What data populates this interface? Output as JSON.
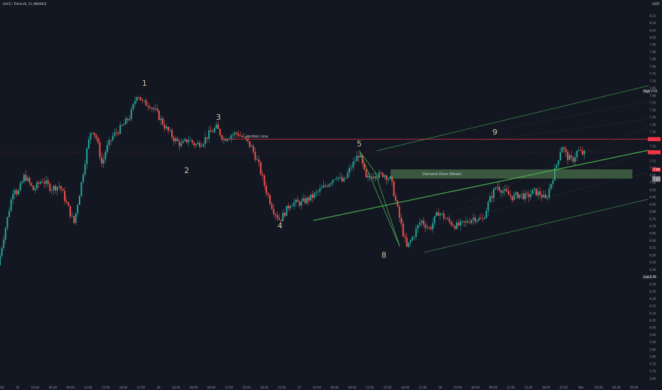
{
  "header": {
    "symbol_title": "ALICE / TetherUS, 15, BINANCE",
    "currency": "USDT"
  },
  "chart_data": {
    "type": "candlestick",
    "x_ticks": [
      "21:00",
      "25",
      "03:00",
      "06:00",
      "09:00",
      "12:00",
      "15:00",
      "18:00",
      "21:00",
      "26",
      "03:00",
      "06:00",
      "09:00",
      "12:00",
      "15:00",
      "18:00",
      "21:00",
      "27",
      "03:00",
      "06:00",
      "09:00",
      "12:00",
      "15:00",
      "18:00",
      "21:00",
      "28",
      "03:00",
      "06:00",
      "09:00",
      "12:00",
      "15:00",
      "18:00",
      "21:00",
      "Mar",
      "03:00",
      "06:00",
      "09:00"
    ],
    "y_ticks": [
      "8.15",
      "8.10",
      "8.05",
      "8.00",
      "7.95",
      "7.90",
      "7.85",
      "7.80",
      "7.75",
      "7.70",
      "7.65",
      "7.60",
      "7.55",
      "7.50",
      "7.45",
      "7.40",
      "7.35",
      "7.30",
      "7.25",
      "7.20",
      "7.15",
      "7.10",
      "7.05",
      "7.00",
      "6.95",
      "6.90",
      "6.85",
      "6.80",
      "6.75",
      "6.70",
      "6.65",
      "6.60",
      "6.55",
      "6.50",
      "6.45",
      "6.40",
      "6.35",
      "6.30",
      "6.25",
      "6.20",
      "6.15",
      "6.10",
      "6.05",
      "6.00",
      "5.95",
      "5.90",
      "5.85",
      "5.80",
      "5.75",
      "5.70",
      "5.65"
    ],
    "ylim": [
      5.62,
      8.22
    ],
    "price_path": [
      {
        "t": 0,
        "p": 6.43
      },
      {
        "t": 0.3,
        "p": 6.62
      },
      {
        "t": 0.6,
        "p": 6.8
      },
      {
        "t": 0.9,
        "p": 6.98
      },
      {
        "t": 1.1,
        "p": 6.92
      },
      {
        "t": 1.5,
        "p": 7.05
      },
      {
        "t": 2.0,
        "p": 6.95
      },
      {
        "t": 2.5,
        "p": 7.02
      },
      {
        "t": 3.0,
        "p": 6.96
      },
      {
        "t": 3.5,
        "p": 6.98
      },
      {
        "t": 4.0,
        "p": 6.82
      },
      {
        "t": 4.3,
        "p": 6.72
      },
      {
        "t": 4.7,
        "p": 6.98
      },
      {
        "t": 5.0,
        "p": 7.2
      },
      {
        "t": 5.3,
        "p": 7.38
      },
      {
        "t": 5.6,
        "p": 7.3
      },
      {
        "t": 5.9,
        "p": 7.12
      },
      {
        "t": 6.1,
        "p": 7.22
      },
      {
        "t": 6.5,
        "p": 7.32
      },
      {
        "t": 7.0,
        "p": 7.38
      },
      {
        "t": 7.5,
        "p": 7.46
      },
      {
        "t": 7.9,
        "p": 7.62
      },
      {
        "t": 8.2,
        "p": 7.55
      },
      {
        "t": 8.6,
        "p": 7.54
      },
      {
        "t": 9.0,
        "p": 7.48
      },
      {
        "t": 9.5,
        "p": 7.38
      },
      {
        "t": 10.0,
        "p": 7.3
      },
      {
        "t": 10.4,
        "p": 7.26
      },
      {
        "t": 10.8,
        "p": 7.3
      },
      {
        "t": 11.2,
        "p": 7.26
      },
      {
        "t": 11.6,
        "p": 7.28
      },
      {
        "t": 12.0,
        "p": 7.34
      },
      {
        "t": 12.4,
        "p": 7.38
      },
      {
        "t": 12.8,
        "p": 7.3
      },
      {
        "t": 13.2,
        "p": 7.33
      },
      {
        "t": 13.6,
        "p": 7.34
      },
      {
        "t": 14.0,
        "p": 7.3
      },
      {
        "t": 14.4,
        "p": 7.24
      },
      {
        "t": 14.8,
        "p": 7.12
      },
      {
        "t": 15.2,
        "p": 6.95
      },
      {
        "t": 15.6,
        "p": 6.82
      },
      {
        "t": 16.0,
        "p": 6.74
      },
      {
        "t": 16.6,
        "p": 6.86
      },
      {
        "t": 17.2,
        "p": 6.86
      },
      {
        "t": 17.8,
        "p": 6.9
      },
      {
        "t": 18.6,
        "p": 6.98
      },
      {
        "t": 19.2,
        "p": 7.05
      },
      {
        "t": 19.6,
        "p": 7.0
      },
      {
        "t": 20.0,
        "p": 7.1
      },
      {
        "t": 20.5,
        "p": 7.2
      },
      {
        "t": 20.9,
        "p": 7.02
      },
      {
        "t": 21.3,
        "p": 7.06
      },
      {
        "t": 21.6,
        "p": 7.05
      },
      {
        "t": 21.9,
        "p": 7.06
      },
      {
        "t": 22.3,
        "p": 7.02
      },
      {
        "t": 22.8,
        "p": 6.75
      },
      {
        "t": 23.2,
        "p": 6.55
      },
      {
        "t": 23.6,
        "p": 6.64
      },
      {
        "t": 24.0,
        "p": 6.74
      },
      {
        "t": 24.5,
        "p": 6.68
      },
      {
        "t": 25.0,
        "p": 6.8
      },
      {
        "t": 25.5,
        "p": 6.74
      },
      {
        "t": 26.0,
        "p": 6.7
      },
      {
        "t": 26.5,
        "p": 6.72
      },
      {
        "t": 27.0,
        "p": 6.76
      },
      {
        "t": 27.5,
        "p": 6.74
      },
      {
        "t": 27.9,
        "p": 6.88
      },
      {
        "t": 28.3,
        "p": 6.98
      },
      {
        "t": 28.7,
        "p": 6.94
      },
      {
        "t": 29.2,
        "p": 6.9
      },
      {
        "t": 29.6,
        "p": 6.92
      },
      {
        "t": 30.0,
        "p": 6.9
      },
      {
        "t": 30.4,
        "p": 6.94
      },
      {
        "t": 30.8,
        "p": 6.92
      },
      {
        "t": 31.1,
        "p": 6.88
      },
      {
        "t": 31.4,
        "p": 7.0
      },
      {
        "t": 31.7,
        "p": 7.12
      },
      {
        "t": 32.0,
        "p": 7.26
      },
      {
        "t": 32.3,
        "p": 7.18
      },
      {
        "t": 32.6,
        "p": 7.15
      },
      {
        "t": 32.9,
        "p": 7.22
      },
      {
        "t": 33.2,
        "p": 7.2
      }
    ],
    "wave_labels": [
      {
        "label": "1",
        "t": 8.2,
        "p": 7.62
      },
      {
        "label": "2",
        "t": 10.6,
        "p": 7.12
      },
      {
        "label": "3",
        "t": 12.4,
        "p": 7.4
      },
      {
        "label": "4",
        "t": 15.9,
        "p": 6.74
      },
      {
        "label": "5",
        "t": 20.4,
        "p": 7.22
      },
      {
        "label": "8",
        "t": 21.8,
        "p": 6.55
      },
      {
        "label": "9",
        "t": 28.1,
        "p": 7.3
      }
    ],
    "ignition_line": {
      "label": "Ignition Line",
      "price": 7.3
    },
    "demand_zone": {
      "label": "Demand Zone (Weak)",
      "top": 7.09,
      "bottom": 7.03
    },
    "price_tags": [
      {
        "text": "",
        "price": 7.3,
        "color": "#f23645"
      },
      {
        "text": "",
        "price": 7.21,
        "color": "#f23645"
      },
      {
        "text": "7.09",
        "price": 7.09,
        "color": "#f23645"
      },
      {
        "text": "7.03",
        "price": 7.03,
        "color": "#787b86"
      },
      {
        "text": "7.03",
        "price": 7.02,
        "color": "#787b86"
      }
    ],
    "high": {
      "label": "High",
      "value": "7.63"
    },
    "low": {
      "label": "Low",
      "value": "6.35"
    },
    "colors": {
      "up": "#26a69a",
      "down": "#ef5350",
      "channel": "#4caf50",
      "ignition": "#f23645"
    }
  }
}
